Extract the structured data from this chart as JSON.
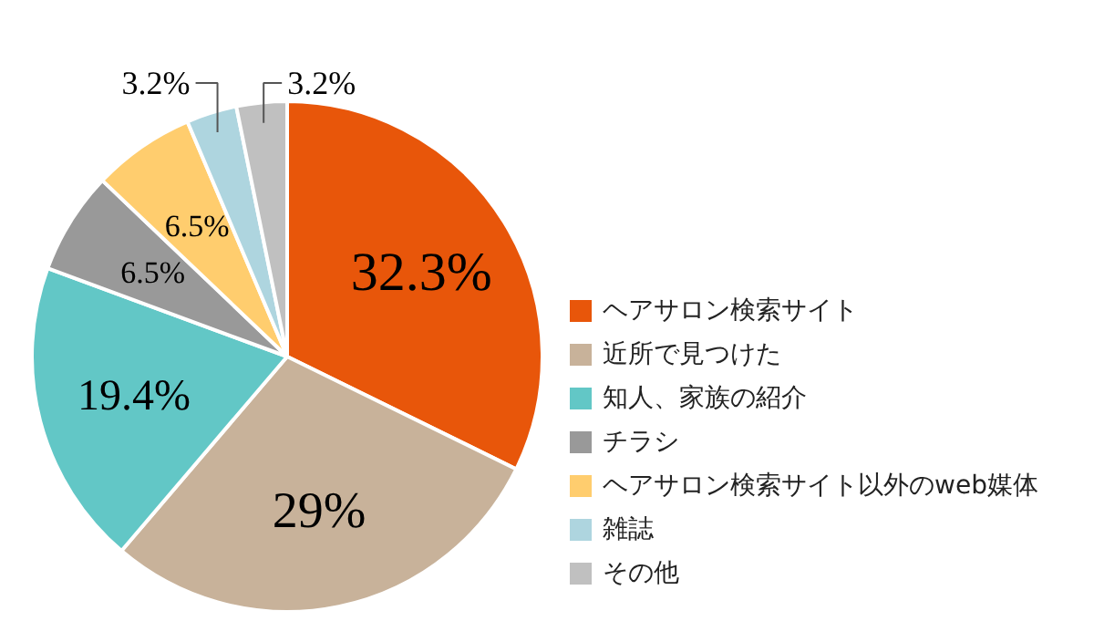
{
  "chart_data": {
    "type": "pie",
    "categories": [
      "ヘアサロン検索サイト",
      "近所で見つけた",
      "知人、家族の紹介",
      "チラシ",
      "ヘアサロン検索サイト以外のweb媒体",
      "雑誌",
      "その他"
    ],
    "values": [
      32.3,
      29,
      19.4,
      6.5,
      6.5,
      3.2,
      3.2
    ],
    "colors": [
      "#e8560a",
      "#c8b29a",
      "#62c7c6",
      "#999999",
      "#ffcd6e",
      "#aed5df",
      "#c0c0c0"
    ],
    "value_labels": [
      "32.3%",
      "29%",
      "19.4%",
      "6.5%",
      "6.5%",
      "3.2%",
      "3.2%"
    ],
    "legend": "right"
  }
}
